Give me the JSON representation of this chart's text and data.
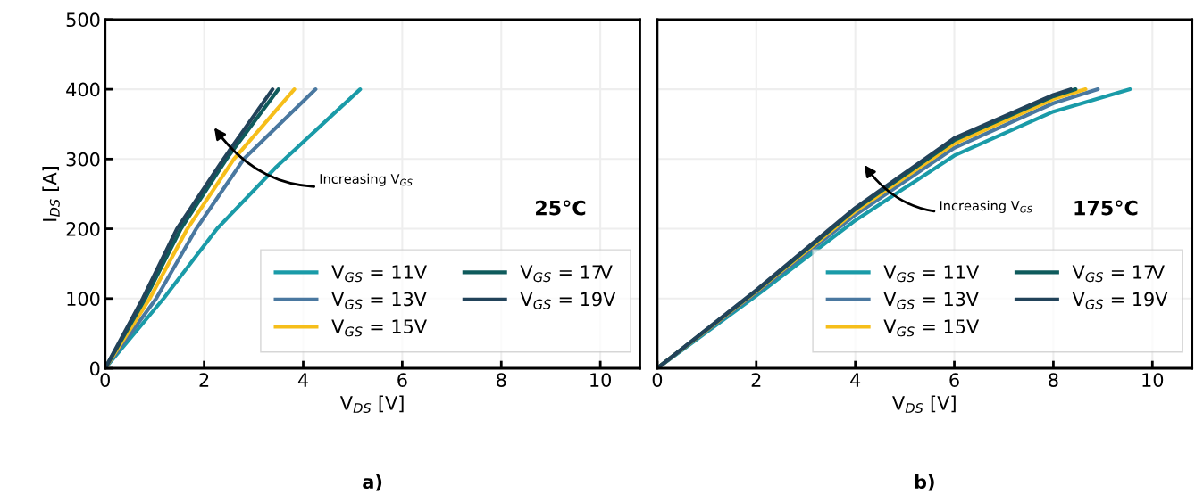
{
  "chart_data": [
    {
      "type": "line",
      "title": "a)",
      "xlabel": "V$_{DS}$ [V]",
      "ylabel": "I$_{DS}$ [A]",
      "xlim": [
        0,
        10.8
      ],
      "xticks": [
        0,
        2,
        4,
        6,
        8,
        10
      ],
      "ylim": [
        0,
        500
      ],
      "yticks": [
        0,
        100,
        200,
        300,
        400,
        500
      ],
      "grid": true,
      "legend": "bottom right",
      "line_style": "solid",
      "marker": "none",
      "annotations": [
        "Increasing V$_{GS}$",
        "25°C"
      ],
      "series": [
        {
          "name": "V$_{GS}$ = 11V",
          "color": "#1a9ba8",
          "x": [
            0,
            1.18,
            2.26,
            3.46,
            5.15
          ],
          "values": [
            0,
            100,
            200,
            289,
            400
          ]
        },
        {
          "name": "V$_{GS}$ = 13V",
          "color": "#4a78a0",
          "x": [
            0,
            1.03,
            1.84,
            2.8,
            4.25
          ],
          "values": [
            0,
            100,
            200,
            300,
            400
          ]
        },
        {
          "name": "V$_{GS}$ = 15V",
          "color": "#f6be1a",
          "x": [
            0,
            0.9,
            1.66,
            2.6,
            3.82
          ],
          "values": [
            0,
            100,
            200,
            300,
            400
          ]
        },
        {
          "name": "V$_{GS}$ = 17V",
          "color": "#0f5b5c",
          "x": [
            0,
            0.81,
            1.53,
            2.45,
            3.5
          ],
          "values": [
            0,
            100,
            200,
            300,
            400
          ]
        },
        {
          "name": "V$_{GS}$ = 19V",
          "color": "#22435a",
          "x": [
            0,
            0.76,
            1.45,
            2.39,
            3.38
          ],
          "values": [
            0,
            100,
            200,
            300,
            400
          ]
        }
      ]
    },
    {
      "type": "line",
      "title": "b)",
      "xlabel": "V$_{DS}$ [V]",
      "xlim": [
        0,
        10.8
      ],
      "xticks": [
        0,
        2,
        4,
        6,
        8,
        10
      ],
      "ylim": [
        0,
        500
      ],
      "yticks": [
        0,
        100,
        200,
        300,
        400,
        500
      ],
      "tick_labels": "x",
      "grid": true,
      "legend": "bottom right",
      "line_style": "solid",
      "marker": "none",
      "annotations": [
        "Increasing V$_{GS}$",
        "175°C"
      ],
      "series": [
        {
          "name": "V$_{GS}$ = 11V",
          "color": "#1a9ba8",
          "x": [
            0,
            2,
            4,
            6,
            8,
            9.55
          ],
          "values": [
            0,
            104,
            212,
            305,
            368,
            400
          ]
        },
        {
          "name": "V$_{GS}$ = 13V",
          "color": "#4a78a0",
          "x": [
            0,
            2,
            4,
            6,
            8,
            8.9
          ],
          "values": [
            0,
            108,
            220,
            316,
            380,
            400
          ]
        },
        {
          "name": "V$_{GS}$ = 15V",
          "color": "#f6be1a",
          "x": [
            0,
            2,
            4,
            6,
            8,
            8.65
          ],
          "values": [
            0,
            110,
            225,
            322,
            386,
            400
          ]
        },
        {
          "name": "V$_{GS}$ = 17V",
          "color": "#0f5b5c",
          "x": [
            0,
            2,
            4,
            6,
            8,
            8.45
          ],
          "values": [
            0,
            111,
            228,
            327,
            390,
            400
          ]
        },
        {
          "name": "V$_{GS}$ = 19V",
          "color": "#22435a",
          "x": [
            0,
            2,
            4,
            6,
            8,
            8.35
          ],
          "values": [
            0,
            112,
            230,
            330,
            392,
            400
          ]
        }
      ]
    }
  ]
}
